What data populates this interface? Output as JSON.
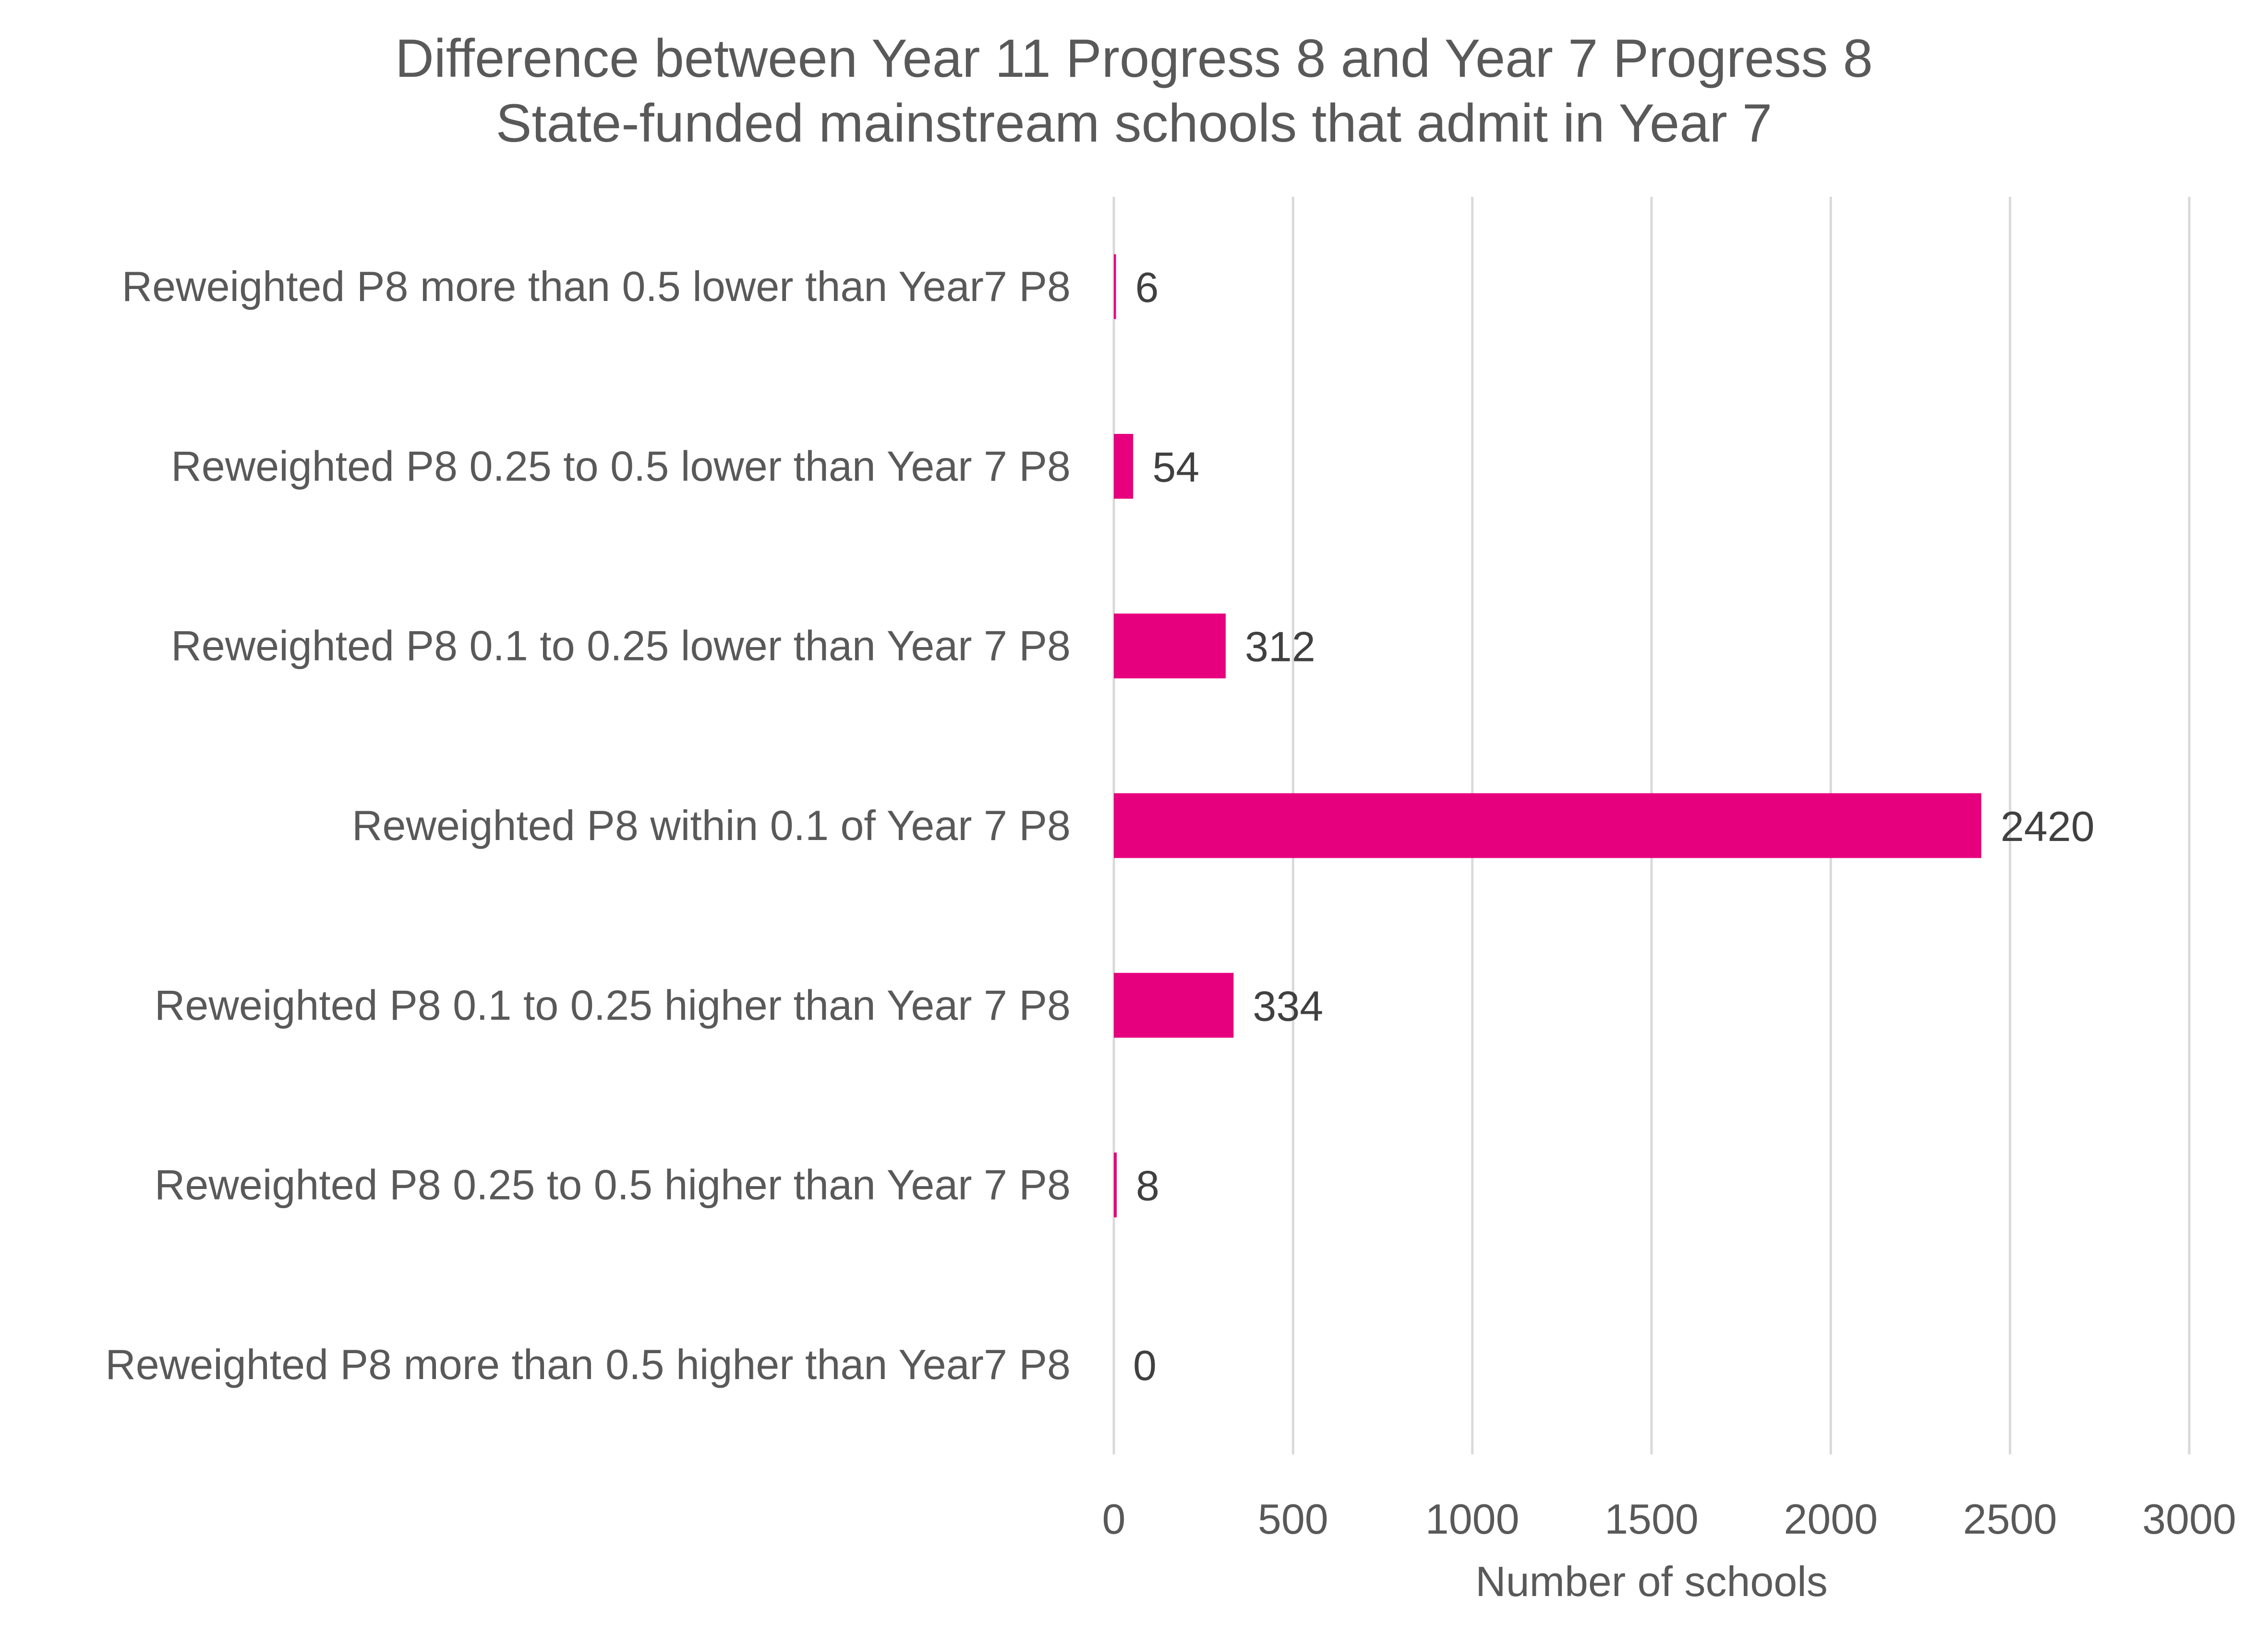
{
  "chart_data": {
    "type": "bar",
    "orientation": "horizontal",
    "title": [
      "Difference between Year 11 Progress 8 and Year 7 Progress 8",
      "State-funded mainstream schools that admit in Year 7"
    ],
    "categories": [
      "Reweighted P8 more than 0.5 lower than Year7 P8",
      "Reweighted P8 0.25 to 0.5 lower than Year 7 P8",
      "Reweighted P8 0.1 to 0.25 lower than Year 7 P8",
      "Reweighted P8 within 0.1 of Year 7 P8",
      "Reweighted P8 0.1 to 0.25 higher than Year 7 P8",
      "Reweighted P8 0.25 to 0.5 higher than Year 7 P8",
      "Reweighted P8 more than 0.5 higher than Year7 P8"
    ],
    "values": [
      6,
      54,
      312,
      2420,
      334,
      8,
      0
    ],
    "data_labels": [
      "6",
      "54",
      "312",
      "2420",
      "334",
      "8",
      "0"
    ],
    "xlabel": "Number of schools",
    "ylabel": "",
    "xlim": [
      0,
      3000
    ],
    "ticks": [
      0,
      500,
      1000,
      1500,
      2000,
      2500,
      3000
    ],
    "tick_labels": [
      "0",
      "500",
      "1000",
      "1500",
      "2000",
      "2500",
      "3000"
    ],
    "grid": "vertical",
    "legend": "none",
    "bar_color": "#e6007e",
    "grid_color": "#d9d9d9",
    "text_color": "#595959"
  }
}
